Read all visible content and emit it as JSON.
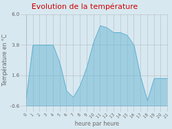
{
  "chart_data": {
    "type": "line",
    "title": "Evolution de la température",
    "x_label": "heure par heure",
    "y_label": "Température en °C",
    "x": [
      0,
      1,
      2,
      3,
      4,
      5,
      6,
      7,
      8,
      9,
      10,
      11,
      12,
      13,
      14,
      15,
      16,
      17,
      18,
      19,
      20,
      21
    ],
    "values": [
      0.0,
      3.8,
      3.8,
      3.8,
      3.8,
      2.5,
      0.5,
      0.05,
      0.9,
      2.2,
      4.0,
      5.2,
      5.05,
      4.7,
      4.7,
      4.5,
      3.8,
      1.5,
      -0.2,
      1.4,
      1.4,
      1.4
    ],
    "color": "#5aafcf",
    "xlim": [
      0,
      21
    ],
    "xticks": [
      0,
      1,
      2,
      3,
      4,
      5,
      6,
      7,
      8,
      9,
      10,
      11,
      12,
      13,
      14,
      15,
      16,
      17,
      18,
      19,
      20,
      21
    ],
    "ylim": [
      -0.6,
      6.0
    ],
    "yticks": [
      -0.6,
      1.6,
      3.8,
      {
        "value": 6.0,
        "label": "6.0"
      }
    ],
    "grid": true
  }
}
